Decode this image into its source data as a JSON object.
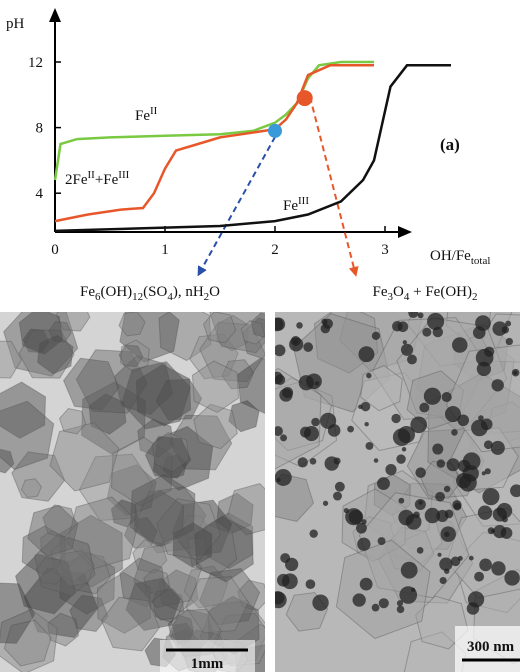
{
  "chart_data": {
    "type": "line",
    "ylabel": "pH",
    "xlabel": [
      {
        "t": "OH/Fe"
      },
      {
        "sub": "total"
      }
    ],
    "xlim": [
      0,
      3.2
    ],
    "ylim": [
      1.6,
      14.8
    ],
    "xticks": [
      0,
      1,
      2,
      3
    ],
    "yticks": [
      4,
      8,
      12
    ],
    "series": [
      {
        "name": [
          {
            "t": "Fe"
          },
          {
            "sup": "II"
          }
        ],
        "color": "#7ac943",
        "x": [
          0,
          0.05,
          0.2,
          0.5,
          1,
          1.5,
          1.8,
          2,
          2.1,
          2.2,
          2.3,
          2.4,
          2.6,
          2.9
        ],
        "values": [
          4.8,
          7.0,
          7.3,
          7.4,
          7.5,
          7.6,
          7.8,
          8.3,
          8.8,
          9.5,
          11.0,
          11.8,
          12,
          12
        ]
      },
      {
        "name": [
          {
            "t": "2Fe"
          },
          {
            "sup": "II"
          },
          {
            "t": "+Fe"
          },
          {
            "sup": "III"
          }
        ],
        "color": "#e8572a",
        "x": [
          0,
          0.3,
          0.6,
          0.8,
          0.9,
          1.0,
          1.1,
          1.3,
          1.5,
          1.7,
          1.9,
          2.0,
          2.1,
          2.2,
          2.3,
          2.5,
          2.9
        ],
        "values": [
          2.3,
          2.7,
          3.0,
          3.1,
          4.0,
          5.5,
          6.6,
          7.0,
          7.4,
          7.6,
          7.8,
          7.9,
          8.5,
          9.5,
          11.2,
          11.8,
          11.8
        ]
      },
      {
        "name": [
          {
            "t": "Fe"
          },
          {
            "sup": "III"
          }
        ],
        "color": "#111111",
        "x": [
          0,
          0.5,
          1.0,
          1.5,
          2.0,
          2.3,
          2.6,
          2.8,
          2.9,
          2.95,
          3.0,
          3.05,
          3.2,
          3.6
        ],
        "values": [
          1.7,
          1.8,
          1.9,
          2.0,
          2.3,
          2.7,
          3.5,
          4.8,
          6.0,
          7.5,
          9.0,
          10.5,
          11.8,
          11.8
        ]
      }
    ],
    "points": [
      {
        "x": 2.0,
        "y": 7.8,
        "color": "#3a9ad9"
      },
      {
        "x": 2.27,
        "y": 9.8,
        "color": "#e8572a"
      }
    ],
    "panel_label": "(a)",
    "products": [
      [
        {
          "t": "Fe"
        },
        {
          "sub": "6"
        },
        {
          "t": "(OH)"
        },
        {
          "sub": "12"
        },
        {
          "t": "(SO"
        },
        {
          "sub": "4"
        },
        {
          "t": "), nH"
        },
        {
          "sub": "2"
        },
        {
          "t": "O"
        }
      ],
      [
        {
          "t": "Fe"
        },
        {
          "sub": "3"
        },
        {
          "t": "O"
        },
        {
          "sub": "4"
        },
        {
          "t": " + Fe(OH)"
        },
        {
          "sub": "2"
        }
      ]
    ]
  },
  "images": [
    {
      "scale_bar": "1mm"
    },
    {
      "scale_bar": "300 nm"
    }
  ]
}
